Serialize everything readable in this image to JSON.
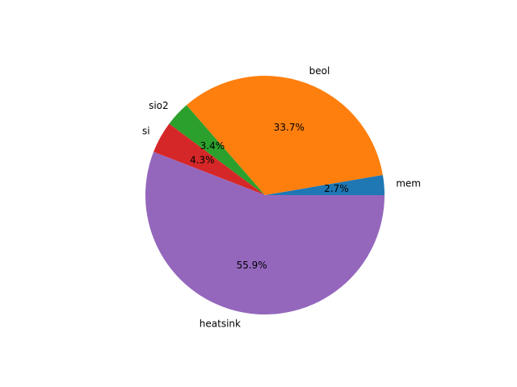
{
  "chart_data": {
    "type": "pie",
    "title": "",
    "slices": [
      {
        "label": "mem",
        "value": 2.7,
        "pct_label": "2.7%",
        "color": "#1f77b4"
      },
      {
        "label": "beol",
        "value": 33.7,
        "pct_label": "33.7%",
        "color": "#ff7f0e"
      },
      {
        "label": "sio2",
        "value": 3.4,
        "pct_label": "3.4%",
        "color": "#2ca02c"
      },
      {
        "label": "si",
        "value": 4.3,
        "pct_label": "4.3%",
        "color": "#d62728"
      },
      {
        "label": "heatsink",
        "value": 55.9,
        "pct_label": "55.9%",
        "color": "#9467bd"
      }
    ],
    "start_angle_deg": 0,
    "direction": "counterclockwise",
    "legend": "none"
  }
}
